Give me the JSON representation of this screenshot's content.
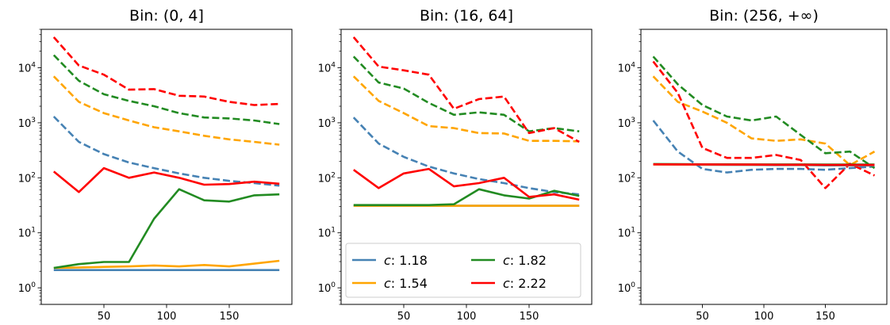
{
  "chart_data": [
    {
      "type": "line",
      "title": "Bin: (0, 4]",
      "yscale": "log",
      "ylim": [
        0.5,
        50000
      ],
      "xlim": [
        0,
        200
      ],
      "xticks": [
        50,
        100,
        150
      ],
      "ytick_labels": [
        {
          "base": "10",
          "exp": "0",
          "value": 1
        },
        {
          "base": "10",
          "exp": "1",
          "value": 10
        },
        {
          "base": "10",
          "exp": "2",
          "value": 100
        },
        {
          "base": "10",
          "exp": "3",
          "value": 1000
        },
        {
          "base": "10",
          "exp": "4",
          "value": 10000
        }
      ],
      "x": [
        10,
        30,
        50,
        70,
        90,
        110,
        130,
        150,
        170,
        190
      ],
      "series": [
        {
          "color": "#4682b4",
          "style": "solid",
          "values": [
            2.1,
            2.1,
            2.1,
            2.1,
            2.1,
            2.1,
            2.1,
            2.1,
            2.1,
            2.1
          ]
        },
        {
          "color": "#ffa500",
          "style": "solid",
          "values": [
            2.3,
            2.35,
            2.4,
            2.45,
            2.55,
            2.45,
            2.6,
            2.45,
            2.75,
            3.1
          ]
        },
        {
          "color": "#228b22",
          "style": "solid",
          "values": [
            2.3,
            2.7,
            2.95,
            2.95,
            18,
            62,
            39,
            37,
            48,
            50
          ]
        },
        {
          "color": "#ff0000",
          "style": "solid",
          "values": [
            130,
            55,
            150,
            100,
            125,
            100,
            75,
            77,
            85,
            78
          ]
        },
        {
          "color": "#4682b4",
          "style": "dashed",
          "values": [
            1300,
            450,
            270,
            190,
            150,
            120,
            100,
            88,
            80,
            72
          ]
        },
        {
          "color": "#ffa500",
          "style": "dashed",
          "values": [
            7000,
            2400,
            1500,
            1100,
            830,
            700,
            580,
            500,
            450,
            400
          ]
        },
        {
          "color": "#228b22",
          "style": "dashed",
          "values": [
            17000,
            5800,
            3300,
            2500,
            2000,
            1500,
            1250,
            1200,
            1100,
            950
          ]
        },
        {
          "color": "#ff0000",
          "style": "dashed",
          "values": [
            36000,
            11000,
            7500,
            4000,
            4100,
            3100,
            3000,
            2400,
            2100,
            2200
          ]
        }
      ]
    },
    {
      "type": "line",
      "title": "Bin: (16, 64]",
      "yscale": "log",
      "ylim": [
        0.5,
        50000
      ],
      "xlim": [
        0,
        200
      ],
      "xticks": [
        50,
        100,
        150
      ],
      "ytick_labels": [
        {
          "base": "10",
          "exp": "0",
          "value": 1
        },
        {
          "base": "10",
          "exp": "1",
          "value": 10
        },
        {
          "base": "10",
          "exp": "2",
          "value": 100
        },
        {
          "base": "10",
          "exp": "3",
          "value": 1000
        },
        {
          "base": "10",
          "exp": "4",
          "value": 10000
        }
      ],
      "x": [
        10,
        30,
        50,
        70,
        90,
        110,
        130,
        150,
        170,
        190
      ],
      "series": [
        {
          "color": "#4682b4",
          "style": "solid",
          "values": [
            31,
            31,
            31,
            31,
            31,
            31,
            31,
            31,
            31,
            31
          ]
        },
        {
          "color": "#ffa500",
          "style": "solid",
          "values": [
            31,
            31,
            31,
            31,
            31,
            31,
            31,
            31,
            31,
            31
          ]
        },
        {
          "color": "#228b22",
          "style": "solid",
          "values": [
            32,
            32,
            32,
            32,
            33,
            62,
            48,
            42,
            58,
            47
          ]
        },
        {
          "color": "#ff0000",
          "style": "solid",
          "values": [
            140,
            65,
            120,
            145,
            70,
            80,
            100,
            45,
            50,
            40
          ]
        },
        {
          "color": "#4682b4",
          "style": "dashed",
          "values": [
            1250,
            420,
            240,
            160,
            120,
            95,
            80,
            65,
            55,
            50
          ]
        },
        {
          "color": "#ffa500",
          "style": "dashed",
          "values": [
            7000,
            2500,
            1500,
            870,
            800,
            650,
            640,
            470,
            470,
            460
          ]
        },
        {
          "color": "#228b22",
          "style": "dashed",
          "values": [
            16000,
            5400,
            4200,
            2300,
            1400,
            1550,
            1400,
            700,
            800,
            700
          ]
        },
        {
          "color": "#ff0000",
          "style": "dashed",
          "values": [
            36000,
            10500,
            9000,
            7500,
            1800,
            2700,
            3000,
            650,
            800,
            450
          ]
        }
      ],
      "legend": {
        "placement": "lower-center",
        "entries": [
          {
            "label": "c",
            "value": ": 1.18",
            "color": "#4682b4"
          },
          {
            "label": "c",
            "value": ": 1.54",
            "color": "#ffa500"
          },
          {
            "label": "c",
            "value": ": 1.82",
            "color": "#228b22"
          },
          {
            "label": "c",
            "value": ": 2.22",
            "color": "#ff0000"
          }
        ]
      }
    },
    {
      "type": "line",
      "title": "Bin: (256, +∞)",
      "yscale": "log",
      "ylim": [
        0.5,
        50000
      ],
      "xlim": [
        0,
        200
      ],
      "xticks": [
        50,
        100,
        150
      ],
      "ytick_labels": [
        {
          "base": "10",
          "exp": "0",
          "value": 1
        },
        {
          "base": "10",
          "exp": "1",
          "value": 10
        },
        {
          "base": "10",
          "exp": "2",
          "value": 100
        },
        {
          "base": "10",
          "exp": "3",
          "value": 1000
        },
        {
          "base": "10",
          "exp": "4",
          "value": 10000
        }
      ],
      "x": [
        10,
        30,
        50,
        70,
        90,
        110,
        130,
        150,
        170,
        190
      ],
      "series": [
        {
          "color": "#4682b4",
          "style": "solid",
          "values": [
            175,
            174,
            173,
            172,
            171,
            170,
            170,
            168,
            168,
            167
          ]
        },
        {
          "color": "#ffa500",
          "style": "solid",
          "values": [
            175,
            175,
            174,
            174,
            173,
            173,
            172,
            172,
            171,
            171
          ]
        },
        {
          "color": "#228b22",
          "style": "solid",
          "values": [
            178,
            177,
            176,
            176,
            175,
            175,
            175,
            174,
            174,
            174
          ]
        },
        {
          "color": "#ff0000",
          "style": "solid",
          "values": [
            176,
            175,
            175,
            174,
            174,
            173,
            173,
            172,
            172,
            171
          ]
        },
        {
          "color": "#4682b4",
          "style": "dashed",
          "values": [
            1100,
            300,
            145,
            125,
            140,
            145,
            145,
            140,
            150,
            160
          ]
        },
        {
          "color": "#ffa500",
          "style": "dashed",
          "values": [
            7000,
            2400,
            1600,
            1000,
            520,
            470,
            500,
            420,
            170,
            300
          ]
        },
        {
          "color": "#228b22",
          "style": "dashed",
          "values": [
            16000,
            5000,
            2100,
            1300,
            1100,
            1300,
            600,
            280,
            300,
            150
          ]
        },
        {
          "color": "#ff0000",
          "style": "dashed",
          "values": [
            13000,
            3500,
            350,
            230,
            230,
            260,
            210,
            65,
            180,
            110
          ]
        }
      ]
    }
  ]
}
